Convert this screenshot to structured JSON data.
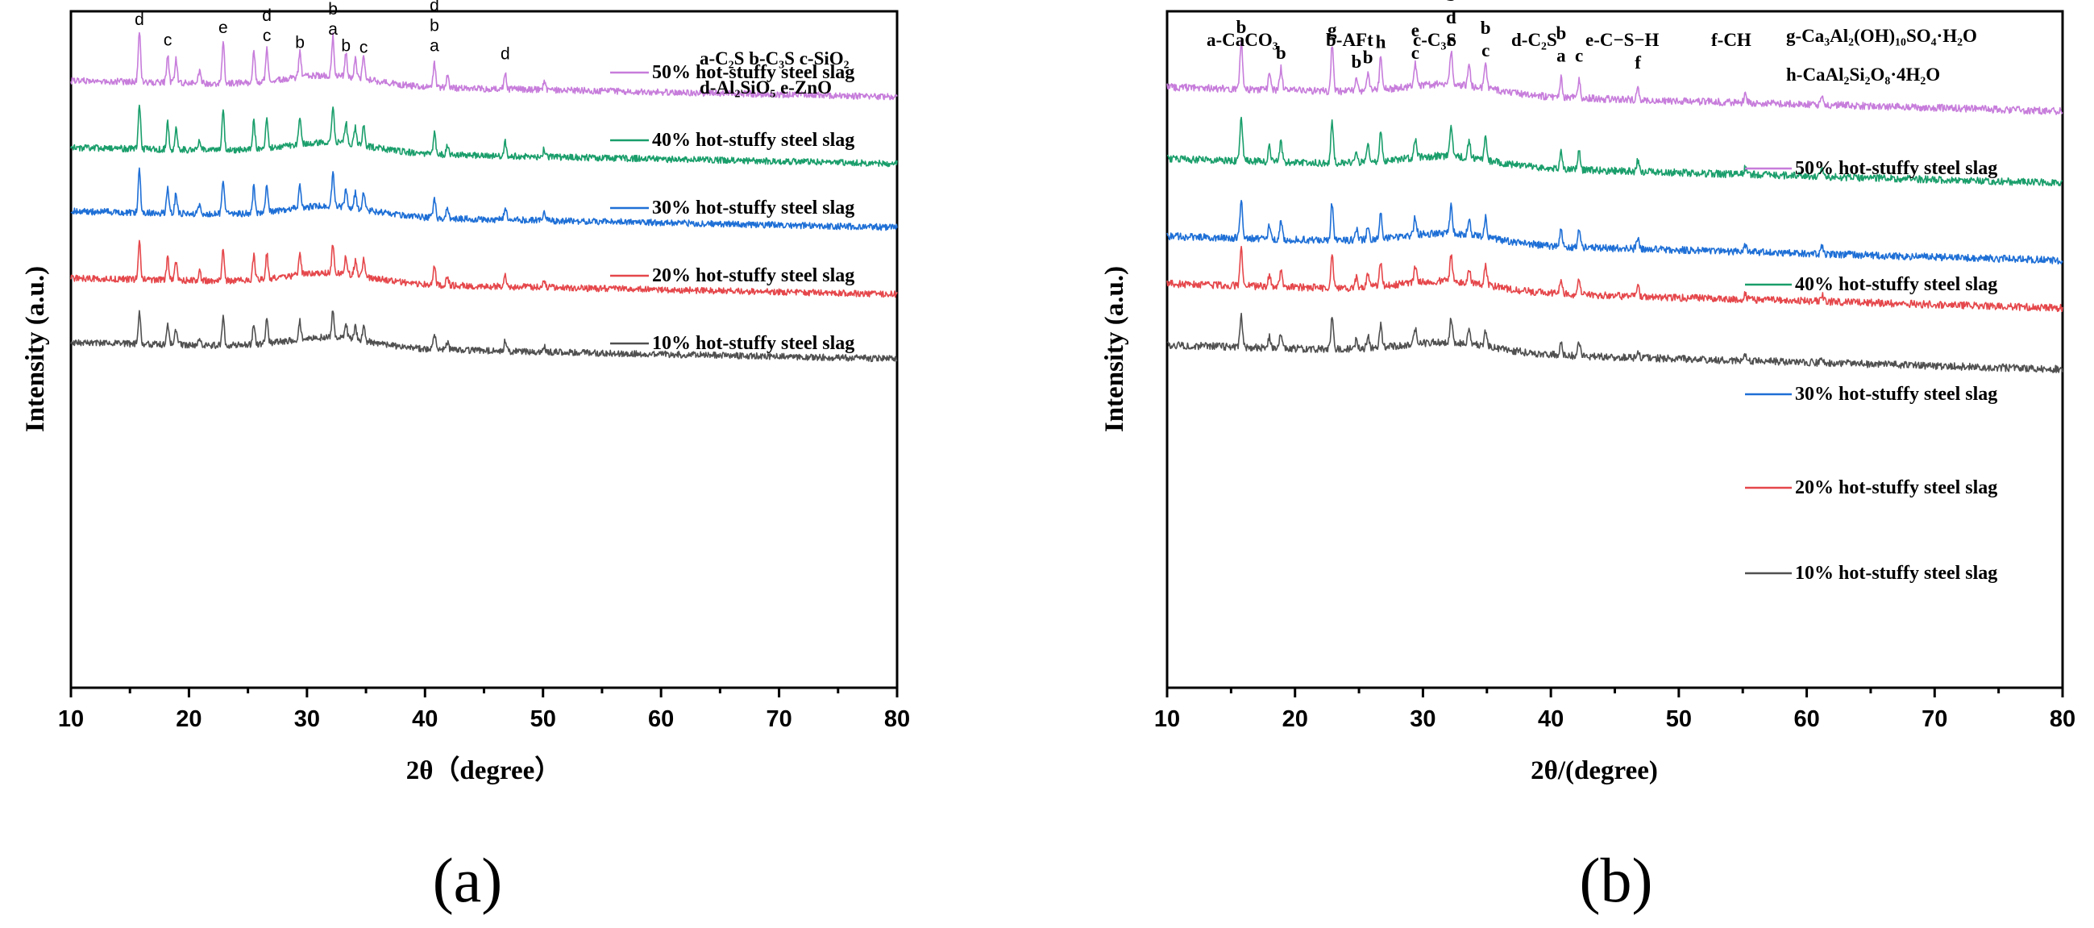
{
  "chart_data": [
    {
      "type": "line",
      "panel": "(a)",
      "xlabel": "2θ（degree）",
      "ylabel": "Intensity (a.u.)",
      "xlim": [
        10,
        80
      ],
      "xticks": [
        10,
        20,
        30,
        40,
        50,
        60,
        70,
        80
      ],
      "phase_legend": [
        {
          "text": "a-C₂S  b-C₃S  c-SiO₂"
        },
        {
          "text": "d-Al₂SiO₅  e-ZnO"
        }
      ],
      "peak_labels": [
        {
          "x": 15.8,
          "stack": [
            "d"
          ]
        },
        {
          "x": 18.2,
          "stack": [
            "c"
          ]
        },
        {
          "x": 22.9,
          "stack": [
            "e"
          ]
        },
        {
          "x": 26.6,
          "stack": [
            "d",
            "c"
          ]
        },
        {
          "x": 29.4,
          "stack": [
            "b"
          ]
        },
        {
          "x": 32.2,
          "stack": [
            "b",
            "a"
          ]
        },
        {
          "x": 33.3,
          "stack": [
            "b"
          ]
        },
        {
          "x": 34.8,
          "stack": [
            "c"
          ]
        },
        {
          "x": 40.8,
          "stack": [
            "d",
            "b",
            "a"
          ]
        },
        {
          "x": 46.8,
          "stack": [
            "d"
          ]
        }
      ],
      "series": [
        {
          "name": "50% hot-stuffy steel slag",
          "color": "#c77ddb",
          "offset": 4
        },
        {
          "name": "40% hot-stuffy steel slag",
          "color": "#1a9e6b",
          "offset": 3
        },
        {
          "name": "30% hot-stuffy steel slag",
          "color": "#1e6fd6",
          "offset": 2
        },
        {
          "name": "20% hot-stuffy steel slag",
          "color": "#e5474b",
          "offset": 1
        },
        {
          "name": "10% hot-stuffy steel slag",
          "color": "#505050",
          "offset": 0
        }
      ],
      "peaks_2theta": [
        15.8,
        18.2,
        18.9,
        20.9,
        22.9,
        25.5,
        26.6,
        29.4,
        32.2,
        33.3,
        34.1,
        34.8,
        40.8,
        41.9,
        46.8,
        50.1
      ]
    },
    {
      "type": "line",
      "panel": "(b)",
      "xlabel": "2θ/(degree)",
      "ylabel": "Intensity (a.u.)",
      "xlim": [
        10,
        80
      ],
      "xticks": [
        10,
        20,
        30,
        40,
        50,
        60,
        70,
        80
      ],
      "phase_legend": [
        {
          "text": "a-CaCO₃"
        },
        {
          "text": "b-AFt"
        },
        {
          "text": "c-C₃S"
        },
        {
          "text": "d-C₂S"
        },
        {
          "text": "e-C−S−H"
        },
        {
          "text": "f-CH"
        },
        {
          "text": "g-Ca₃Al₂(OH)₁₀SO₄·H₂O"
        },
        {
          "text": "h-CaAl₂Si₂O₈·4H₂O"
        }
      ],
      "peak_labels": [
        {
          "x": 15.8,
          "stack": [
            "b"
          ]
        },
        {
          "x": 18.9,
          "stack": [
            "b"
          ]
        },
        {
          "x": 22.9,
          "stack": [
            "g"
          ]
        },
        {
          "x": 24.8,
          "stack": [
            "b"
          ]
        },
        {
          "x": 25.7,
          "stack": [
            "b"
          ]
        },
        {
          "x": 26.7,
          "stack": [
            "h"
          ]
        },
        {
          "x": 29.4,
          "stack": [
            "e",
            "c"
          ]
        },
        {
          "x": 32.2,
          "stack": [
            "b",
            "d",
            "c"
          ]
        },
        {
          "x": 34.9,
          "stack": [
            "b",
            "c"
          ]
        },
        {
          "x": 40.8,
          "stack": [
            "b",
            "a"
          ]
        },
        {
          "x": 42.2,
          "stack": [
            "c"
          ]
        },
        {
          "x": 46.8,
          "stack": [
            "f"
          ]
        }
      ],
      "series": [
        {
          "name": "50% hot-stuffy steel slag",
          "color": "#c77ddb",
          "offset": 4
        },
        {
          "name": "40% hot-stuffy steel slag",
          "color": "#1a9e6b",
          "offset": 3
        },
        {
          "name": "30% hot-stuffy steel slag",
          "color": "#1e6fd6",
          "offset": 2
        },
        {
          "name": "20% hot-stuffy steel slag",
          "color": "#e5474b",
          "offset": 1
        },
        {
          "name": "10% hot-stuffy steel slag",
          "color": "#505050",
          "offset": 0
        }
      ],
      "peaks_2theta": [
        15.8,
        18.0,
        18.9,
        22.9,
        24.8,
        25.7,
        26.7,
        29.4,
        32.2,
        33.6,
        34.9,
        40.8,
        42.2,
        46.8,
        55.2,
        61.2
      ]
    }
  ]
}
